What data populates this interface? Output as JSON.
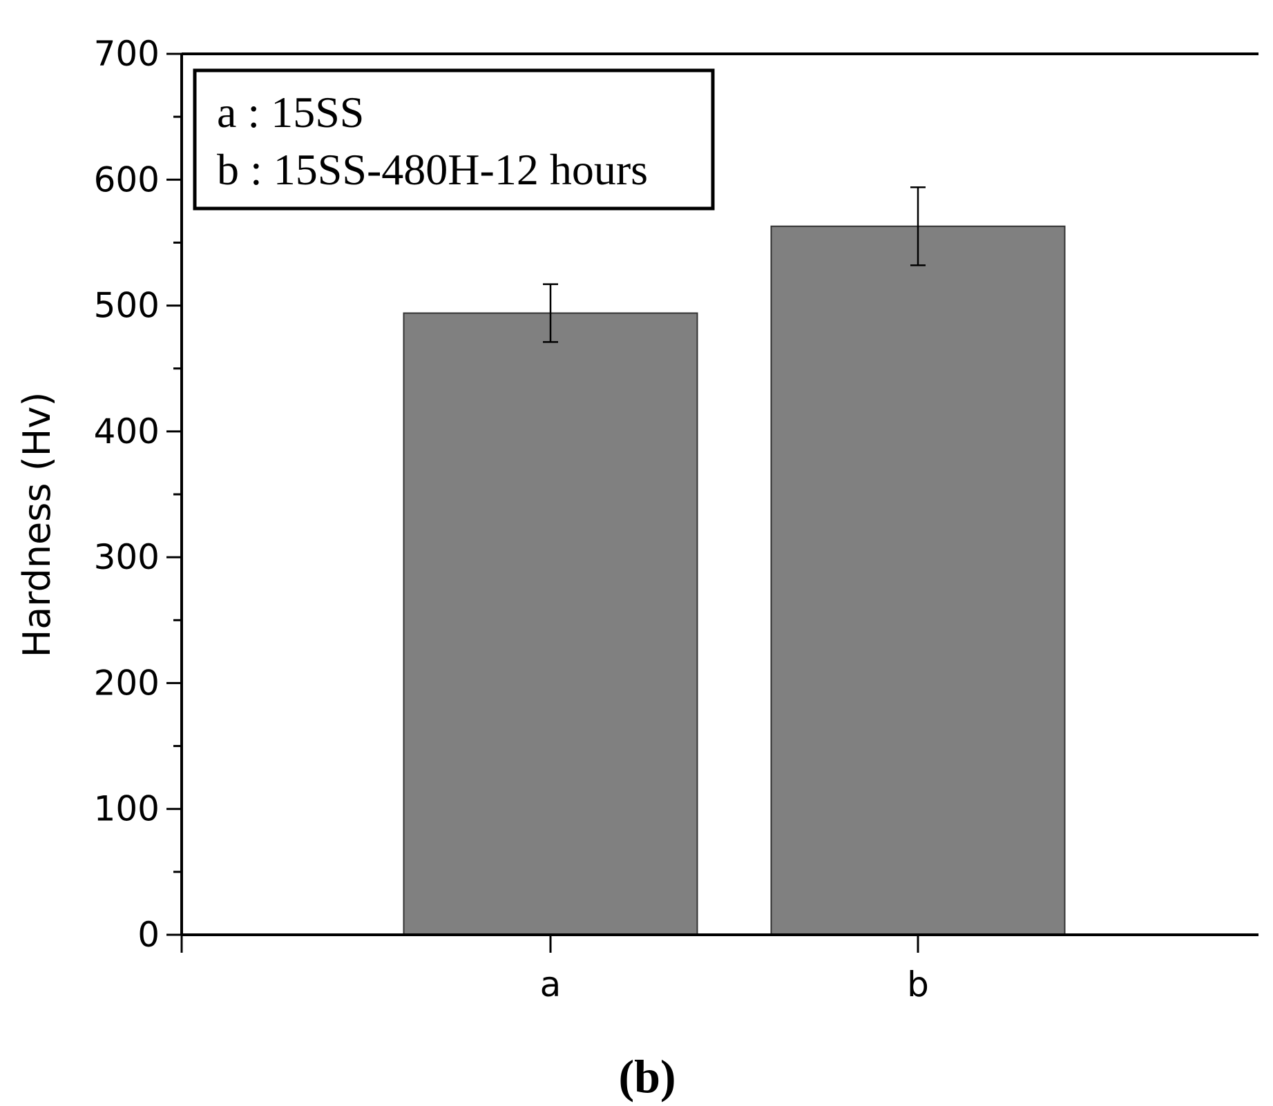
{
  "panel_label": "(b)",
  "chart_data": {
    "type": "bar",
    "categories": [
      "a",
      "b"
    ],
    "series": [
      {
        "values": [
          494,
          563
        ],
        "errors": [
          23,
          31
        ]
      }
    ],
    "xlabel": "",
    "ylabel": "Hardness (Hv)",
    "ylim": [
      0,
      700
    ],
    "y_ticks": [
      0,
      100,
      200,
      300,
      400,
      500,
      600,
      700
    ],
    "grid": false,
    "bar_color": "#808080",
    "legend": {
      "placement": "top-left",
      "entries": [
        "a : 15SS",
        "b : 15SS-480H-12 hours"
      ]
    }
  }
}
